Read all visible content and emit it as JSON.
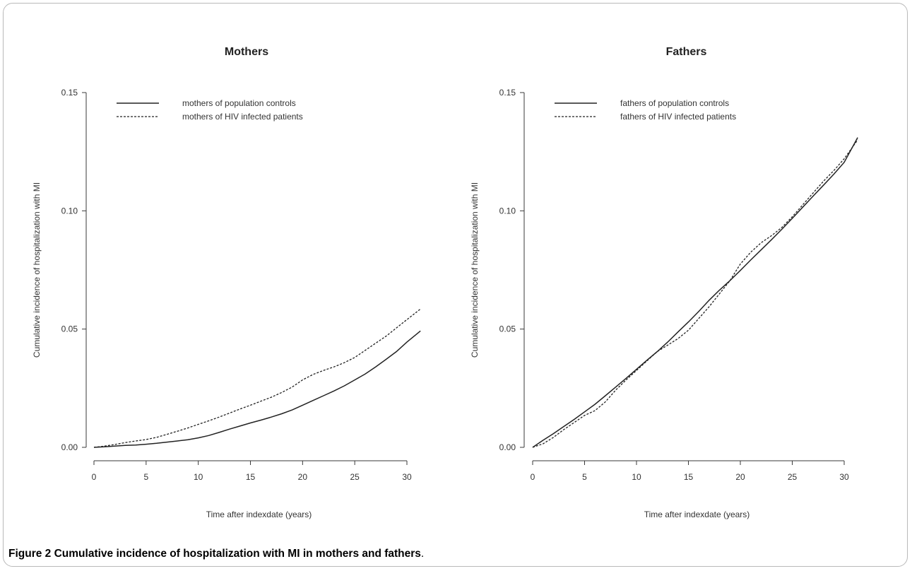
{
  "caption": {
    "label": "Figure 2",
    "text": "Cumulative incidence of hospitalization with MI in mothers and fathers",
    "period": "."
  },
  "chart_data": [
    {
      "type": "line",
      "title": "Mothers",
      "xlabel": "Time after indexdate (years)",
      "ylabel": "Cumulative incidence of hospitalization with MI",
      "xlim": [
        0,
        31.5
      ],
      "ylim": [
        0,
        0.155
      ],
      "xticks": [
        0,
        5,
        10,
        15,
        20,
        25,
        30
      ],
      "xtick_labels": [
        "0",
        "5",
        "10",
        "15",
        "20",
        "25",
        "30"
      ],
      "yticks": [
        0,
        0.05,
        0.1,
        0.15
      ],
      "ytick_labels": [
        "0.00",
        "0.05",
        "0.10",
        "0.15"
      ],
      "legend_position": "top-left",
      "series": [
        {
          "name": "mothers of population controls",
          "style": "solid",
          "x": [
            0,
            1,
            2,
            3,
            4,
            5,
            6,
            7,
            8,
            9,
            10,
            11,
            12,
            13,
            14,
            15,
            16,
            17,
            18,
            19,
            20,
            21,
            22,
            23,
            24,
            25,
            26,
            27,
            28,
            29,
            30,
            31.3
          ],
          "y": [
            0,
            0.0002,
            0.0005,
            0.0008,
            0.001,
            0.0013,
            0.0017,
            0.0022,
            0.0027,
            0.0032,
            0.004,
            0.005,
            0.0063,
            0.0077,
            0.009,
            0.0103,
            0.0115,
            0.0128,
            0.0142,
            0.0158,
            0.0178,
            0.0198,
            0.0218,
            0.0238,
            0.026,
            0.0285,
            0.031,
            0.034,
            0.0372,
            0.0405,
            0.0445,
            0.0492
          ]
        },
        {
          "name": "mothers of HIV infected patients",
          "style": "dashed",
          "x": [
            0,
            1,
            2,
            3,
            4,
            5,
            6,
            7,
            8,
            9,
            10,
            11,
            12,
            13,
            14,
            15,
            16,
            17,
            18,
            19,
            20,
            21,
            22,
            23,
            24,
            25,
            26,
            27,
            28,
            29,
            30,
            31.3
          ],
          "y": [
            0,
            0.0005,
            0.0012,
            0.002,
            0.0027,
            0.0033,
            0.0042,
            0.0055,
            0.0068,
            0.0082,
            0.0097,
            0.0112,
            0.0128,
            0.0145,
            0.0162,
            0.0178,
            0.0195,
            0.0212,
            0.0232,
            0.0255,
            0.0285,
            0.0308,
            0.0325,
            0.034,
            0.0358,
            0.038,
            0.041,
            0.044,
            0.047,
            0.0505,
            0.054,
            0.0585
          ]
        }
      ]
    },
    {
      "type": "line",
      "title": "Fathers",
      "xlabel": "Time after indexdate (years)",
      "ylabel": "Cumulative incidence of hospitalization with MI",
      "xlim": [
        0,
        31.5
      ],
      "ylim": [
        0,
        0.155
      ],
      "xticks": [
        0,
        5,
        10,
        15,
        20,
        25,
        30
      ],
      "xtick_labels": [
        "0",
        "5",
        "10",
        "15",
        "20",
        "25",
        "30"
      ],
      "yticks": [
        0,
        0.05,
        0.1,
        0.15
      ],
      "ytick_labels": [
        "0.00",
        "0.05",
        "0.10",
        "0.15"
      ],
      "legend_position": "top-left",
      "series": [
        {
          "name": "fathers of population controls",
          "style": "solid",
          "x": [
            0,
            1,
            2,
            3,
            4,
            5,
            6,
            7,
            8,
            9,
            10,
            11,
            12,
            13,
            14,
            15,
            16,
            17,
            18,
            19,
            20,
            21,
            22,
            23,
            24,
            25,
            26,
            27,
            28,
            29,
            30,
            31.3
          ],
          "y": [
            0,
            0.003,
            0.0058,
            0.0088,
            0.0118,
            0.015,
            0.0182,
            0.0218,
            0.0255,
            0.0292,
            0.033,
            0.0368,
            0.0405,
            0.0445,
            0.0488,
            0.053,
            0.0575,
            0.0622,
            0.0665,
            0.0705,
            0.0748,
            0.0792,
            0.0835,
            0.0878,
            0.0922,
            0.0968,
            0.1015,
            0.1062,
            0.1108,
            0.1155,
            0.1205,
            0.131
          ]
        },
        {
          "name": "fathers of HIV infected patients",
          "style": "dashed",
          "x": [
            0,
            1,
            2,
            3,
            4,
            5,
            6,
            7,
            8,
            9,
            10,
            11,
            12,
            13,
            14,
            15,
            16,
            17,
            18,
            19,
            20,
            21,
            22,
            23,
            24,
            25,
            26,
            27,
            28,
            29,
            30,
            31.3
          ],
          "y": [
            0,
            0.0015,
            0.0042,
            0.0075,
            0.0105,
            0.0135,
            0.0155,
            0.0192,
            0.0242,
            0.0285,
            0.0325,
            0.0365,
            0.0405,
            0.0432,
            0.046,
            0.0495,
            0.0545,
            0.0595,
            0.065,
            0.0705,
            0.0775,
            0.0825,
            0.0865,
            0.0895,
            0.093,
            0.0975,
            0.1025,
            0.1075,
            0.1125,
            0.117,
            0.122,
            0.13
          ]
        }
      ]
    }
  ]
}
